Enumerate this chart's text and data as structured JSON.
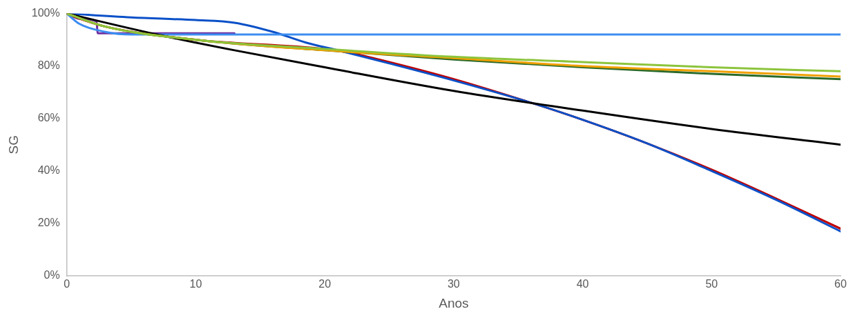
{
  "chart_data": {
    "type": "line",
    "xlabel": "Anos",
    "ylabel": "SG",
    "xlim": [
      0,
      60
    ],
    "xticks": [
      0,
      10,
      20,
      30,
      40,
      50,
      60
    ],
    "ylim": [
      0,
      100
    ],
    "yticks": [
      {
        "value": 0,
        "label": "0%"
      },
      {
        "value": 20,
        "label": "20%"
      },
      {
        "value": 40,
        "label": "40%"
      },
      {
        "value": 60,
        "label": "60%"
      },
      {
        "value": 80,
        "label": "80%"
      },
      {
        "value": 100,
        "label": "100%"
      }
    ],
    "grid": false,
    "legend": false,
    "marker": "none",
    "line_style": "solid",
    "series": [
      {
        "color": "#8cc43c",
        "x": [
          0,
          3,
          10,
          20,
          30,
          40,
          50,
          60
        ],
        "values": [
          100,
          95,
          90,
          86.5,
          83.5,
          81.5,
          79.5,
          78
        ]
      },
      {
        "color": "#f0a000",
        "x": [
          0,
          3,
          10,
          20,
          30,
          40,
          50,
          60
        ],
        "values": [
          100,
          95,
          90,
          86,
          83,
          80,
          78,
          76
        ]
      },
      {
        "color": "#2a6a2a",
        "x": [
          0,
          3,
          10,
          20,
          30,
          40,
          50,
          60
        ],
        "values": [
          100,
          95,
          90,
          86,
          82.5,
          79.5,
          77,
          75
        ]
      },
      {
        "color": "#000000",
        "x": [
          0,
          7,
          13,
          20,
          30,
          40,
          50,
          60
        ],
        "values": [
          100,
          92,
          86,
          79.5,
          70.5,
          63,
          56,
          50
        ]
      },
      {
        "color": "#3c8df0",
        "x": [
          0,
          1,
          3,
          5,
          60
        ],
        "values": [
          100,
          96,
          93,
          92,
          92
        ]
      },
      {
        "color": "#0a50c8",
        "x": [
          0,
          5,
          10,
          13,
          16,
          18.5,
          21,
          25,
          30,
          36,
          40,
          45,
          50,
          55,
          60
        ],
        "values": [
          100,
          98.5,
          97.5,
          96.5,
          93,
          89,
          86,
          81,
          74.5,
          66,
          59.5,
          50.5,
          40,
          29,
          17
        ]
      },
      {
        "color": "#c00000",
        "x": [
          0,
          1,
          3,
          10,
          20,
          22,
          25,
          30,
          36,
          40,
          45,
          50,
          55,
          60
        ],
        "values": [
          100,
          98,
          95,
          90,
          86.5,
          85,
          81.5,
          75,
          66,
          59.5,
          50.5,
          40.5,
          29.5,
          18
        ]
      },
      {
        "color": "#7030a0",
        "x": [
          0,
          1,
          2.3,
          2.4,
          13
        ],
        "values": [
          100,
          98,
          97,
          92.5,
          92.5
        ]
      }
    ]
  }
}
